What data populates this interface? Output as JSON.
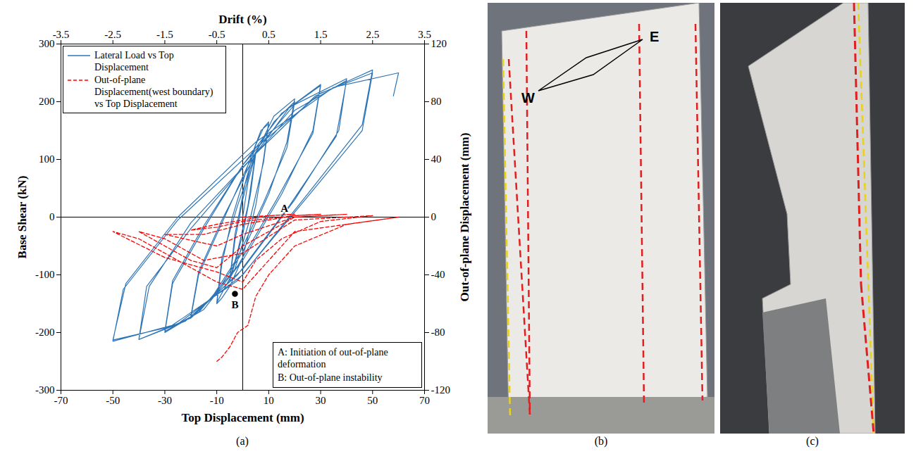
{
  "chart_data": {
    "type": "line",
    "x_label": "Top Displacement (mm)",
    "x2_label": "Drift (%)",
    "y_label": "Base Shear (kN)",
    "y2_label": "Out-of-plane Displacement (mm)",
    "xlim": [
      -70,
      70
    ],
    "xticks": [
      -70,
      -50,
      -30,
      -10,
      10,
      30,
      50,
      70
    ],
    "x2lim": [
      -3.5,
      3.5
    ],
    "x2ticks": [
      -3.5,
      -2.5,
      -1.5,
      -0.5,
      0.5,
      1.5,
      2.5,
      3.5
    ],
    "ylim": [
      -300,
      300
    ],
    "yticks": [
      -300,
      -200,
      -100,
      0,
      100,
      200,
      300
    ],
    "y2lim": [
      -120,
      120
    ],
    "y2ticks": [
      -120,
      -80,
      -40,
      0,
      40,
      80,
      120
    ],
    "grid": false,
    "legend": "top-left",
    "series": [
      {
        "name": "Lateral Load vs Top Displacement",
        "color": "#2e75b6",
        "line_style": "solid",
        "x": [
          0,
          2,
          5,
          3,
          0,
          -3,
          -5,
          -3,
          0,
          3,
          5,
          2,
          -2,
          -5,
          -3,
          1,
          5,
          8,
          10,
          8,
          5,
          0,
          -5,
          -8,
          -10,
          -8,
          -4,
          2,
          7,
          10,
          8,
          3,
          -3,
          -10,
          -8,
          -2,
          5,
          12,
          20,
          17,
          10,
          0,
          -10,
          -20,
          -17,
          -8,
          2,
          12,
          20,
          17,
          8,
          -2,
          -12,
          -20,
          -17,
          -8,
          5,
          18,
          30,
          27,
          15,
          0,
          -15,
          -30,
          -27,
          -15,
          0,
          15,
          30,
          27,
          13,
          -2,
          -17,
          -30,
          -27,
          -15,
          0,
          20,
          40,
          37,
          20,
          0,
          -20,
          -40,
          -37,
          -20,
          0,
          20,
          40,
          36,
          18,
          -2,
          -22,
          -40,
          -36,
          -20,
          5,
          28,
          50,
          46,
          25,
          0,
          -25,
          -50,
          -46,
          -25,
          5,
          30,
          50,
          46,
          24,
          -2,
          -28,
          -50,
          -45,
          -25,
          5,
          35,
          60,
          58
        ],
        "values": [
          0,
          60,
          110,
          40,
          -30,
          -80,
          -110,
          -40,
          30,
          85,
          112,
          20,
          -60,
          -108,
          -30,
          60,
          125,
          155,
          165,
          100,
          20,
          -70,
          -120,
          -140,
          -150,
          -80,
          0,
          90,
          150,
          162,
          95,
          0,
          -90,
          -148,
          -70,
          20,
          110,
          175,
          205,
          130,
          40,
          -60,
          -130,
          -175,
          -100,
          -10,
          90,
          165,
          200,
          120,
          25,
          -70,
          -140,
          -172,
          -95,
          -5,
          110,
          190,
          230,
          150,
          40,
          -75,
          -160,
          -200,
          -115,
          -20,
          90,
          180,
          228,
          145,
          30,
          -85,
          -165,
          -198,
          -110,
          -15,
          90,
          195,
          240,
          150,
          30,
          -90,
          -175,
          -212,
          -120,
          -20,
          85,
          185,
          237,
          140,
          20,
          -100,
          -180,
          -212,
          -120,
          -10,
          110,
          210,
          255,
          160,
          40,
          -100,
          -185,
          -215,
          -125,
          -5,
          120,
          215,
          250,
          150,
          30,
          -110,
          -190,
          -213,
          -115,
          0,
          130,
          225,
          250,
          210
        ]
      },
      {
        "name": "Out-of-plane Displacement(west boundary) vs Top Displacement",
        "color": "#ff0000",
        "line_style": "dashed",
        "axis": "y2",
        "x": [
          0,
          10,
          20,
          10,
          0,
          -10,
          -20,
          -10,
          0,
          20,
          30,
          20,
          0,
          -15,
          -30,
          -20,
          -10,
          0,
          20,
          40,
          20,
          0,
          -10,
          -20,
          -30,
          -40,
          -30,
          -15,
          0,
          20,
          50,
          30,
          15,
          5,
          0,
          -10,
          -30,
          -50,
          -40,
          -20,
          -10,
          0,
          20,
          60,
          40,
          20,
          10,
          5,
          2,
          -2,
          -5,
          -8,
          -10
        ],
        "values": [
          0,
          1,
          2,
          1,
          -2,
          -5,
          -9,
          -7,
          -3,
          1,
          2,
          1,
          -5,
          -12,
          -12,
          -16,
          -20,
          -12,
          0,
          2,
          0,
          -20,
          -35,
          -30,
          -20,
          -10,
          -15,
          -30,
          -25,
          -2,
          1,
          -3,
          -15,
          -30,
          -45,
          -38,
          -28,
          -10,
          -15,
          -35,
          -45,
          -50,
          -10,
          0,
          -5,
          -20,
          -40,
          -55,
          -75,
          -80,
          -90,
          -97,
          -100
        ]
      }
    ],
    "annotations": [
      {
        "text": "A",
        "x": 15,
        "y": 0
      },
      {
        "text": "B",
        "x": -3,
        "y": -133,
        "marker": "dot",
        "color": "#000000"
      }
    ],
    "notes": [
      "A: Initiation of out-of-plane deformation",
      "B: Out-of-plane instability"
    ]
  },
  "figure": {
    "panel_labels": [
      "(a)",
      "(b)",
      "(c)"
    ],
    "photo_annotations": [
      "W",
      "E"
    ]
  }
}
